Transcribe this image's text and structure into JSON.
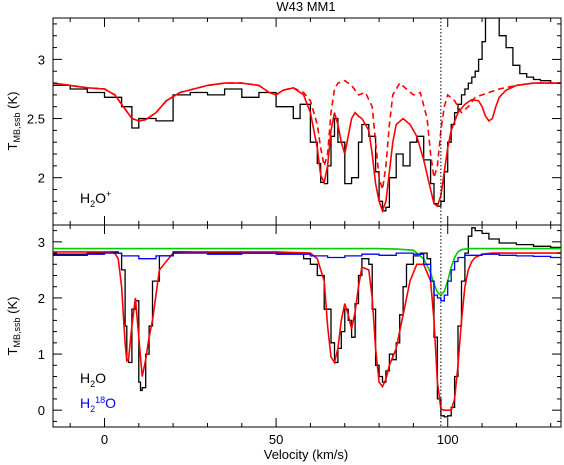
{
  "chart_data": [
    {
      "type": "line",
      "panel": "top",
      "title": "W43  MM1",
      "xlabel": "",
      "ylabel": "T_MB,ssb (K)",
      "ylabel_main": "T",
      "ylabel_sub": "MB,ssb",
      "ylabel_unit": " (K)",
      "xlim": [
        -15,
        133
      ],
      "ylim": [
        1.6,
        3.35
      ],
      "x_ticks": [
        0,
        50,
        100
      ],
      "y_ticks": [
        2,
        2.5,
        3
      ],
      "y_tick_labels": [
        "2",
        "2.5",
        "3"
      ],
      "vline_x": 98,
      "species_label": "H2O+",
      "species_main": "H",
      "species_sub": "2",
      "species_tail": "O",
      "species_sup": "+",
      "series": [
        {
          "style": "observed-step",
          "color": "#000000",
          "x": [
            -15,
            -10,
            -5,
            0,
            5,
            8,
            10,
            15,
            20,
            25,
            30,
            35,
            40,
            45,
            50,
            55,
            57,
            60,
            62,
            63,
            64,
            65,
            66,
            67,
            68,
            70,
            72,
            74,
            75,
            77,
            79,
            80,
            81,
            82,
            83,
            85,
            87,
            89,
            91,
            93,
            95,
            96,
            97,
            98,
            99,
            100,
            101,
            102,
            103,
            104,
            105,
            106,
            107,
            108,
            109,
            110,
            111,
            112,
            113,
            115,
            117,
            119,
            121,
            123,
            125,
            127,
            130,
            133
          ],
          "y": [
            2.78,
            2.75,
            2.72,
            2.68,
            2.6,
            2.42,
            2.5,
            2.48,
            2.7,
            2.72,
            2.7,
            2.75,
            2.68,
            2.72,
            2.6,
            2.5,
            2.62,
            2.3,
            2.12,
            1.96,
            1.95,
            2.1,
            2.35,
            2.5,
            2.3,
            1.95,
            2.0,
            2.3,
            2.45,
            2.35,
            2.05,
            1.8,
            1.72,
            1.75,
            2.0,
            2.2,
            2.1,
            2.3,
            2.35,
            2.15,
            1.95,
            1.78,
            1.76,
            1.8,
            2.05,
            2.3,
            2.45,
            2.55,
            2.62,
            2.7,
            2.75,
            2.8,
            2.85,
            2.9,
            3.0,
            3.15,
            3.35,
            3.35,
            3.35,
            3.2,
            3.1,
            2.95,
            2.88,
            2.85,
            2.83,
            2.82,
            2.8,
            2.8
          ]
        },
        {
          "style": "model-solid",
          "color": "#ff0000",
          "x": [
            -15,
            -10,
            -5,
            0,
            3,
            6,
            8,
            10,
            12,
            15,
            18,
            22,
            26,
            30,
            35,
            40,
            45,
            48,
            50,
            52,
            55,
            58,
            60,
            62,
            63,
            64,
            65,
            66,
            67,
            68,
            69,
            70,
            71,
            72,
            73,
            74,
            75,
            76,
            77,
            78,
            79,
            80,
            81,
            82,
            83,
            84,
            85,
            87,
            89,
            91,
            93,
            95,
            96,
            97,
            98,
            99,
            100,
            101,
            103,
            105,
            107,
            109,
            110,
            111,
            112,
            113,
            114,
            115,
            117,
            120,
            125,
            130,
            133
          ],
          "y": [
            2.8,
            2.78,
            2.76,
            2.75,
            2.7,
            2.58,
            2.5,
            2.48,
            2.49,
            2.55,
            2.65,
            2.72,
            2.75,
            2.78,
            2.8,
            2.8,
            2.78,
            2.72,
            2.7,
            2.74,
            2.76,
            2.7,
            2.55,
            2.25,
            2.02,
            1.96,
            2.1,
            2.4,
            2.55,
            2.45,
            2.3,
            2.2,
            2.35,
            2.5,
            2.55,
            2.52,
            2.5,
            2.45,
            2.4,
            2.2,
            1.95,
            1.8,
            1.72,
            1.8,
            2.05,
            2.3,
            2.45,
            2.5,
            2.45,
            2.35,
            2.15,
            1.9,
            1.78,
            1.76,
            1.85,
            2.05,
            2.25,
            2.4,
            2.55,
            2.62,
            2.66,
            2.65,
            2.6,
            2.52,
            2.48,
            2.5,
            2.6,
            2.68,
            2.74,
            2.78,
            2.8,
            2.8,
            2.8
          ]
        },
        {
          "style": "model-dashed",
          "color": "#ff0000",
          "x": [
            -15,
            -10,
            -5,
            0,
            3,
            6,
            8,
            10,
            12,
            15,
            18,
            22,
            26,
            30,
            35,
            40,
            45,
            48,
            50,
            52,
            55,
            58,
            60,
            62,
            63,
            64,
            65,
            66,
            67,
            68,
            70,
            72,
            74,
            76,
            78,
            79,
            80,
            81,
            82,
            83,
            84,
            86,
            88,
            90,
            92,
            94,
            95,
            96,
            97,
            98,
            99,
            100,
            102,
            104,
            106,
            108,
            110,
            112,
            115,
            120,
            125,
            130,
            133
          ],
          "y": [
            2.8,
            2.78,
            2.76,
            2.75,
            2.7,
            2.58,
            2.5,
            2.48,
            2.49,
            2.55,
            2.65,
            2.72,
            2.75,
            2.78,
            2.8,
            2.8,
            2.78,
            2.72,
            2.7,
            2.74,
            2.76,
            2.72,
            2.65,
            2.45,
            2.25,
            2.1,
            2.2,
            2.55,
            2.75,
            2.8,
            2.82,
            2.78,
            2.7,
            2.72,
            2.6,
            2.3,
            2.0,
            1.9,
            2.1,
            2.45,
            2.7,
            2.8,
            2.75,
            2.7,
            2.72,
            2.5,
            2.2,
            2.0,
            2.1,
            2.4,
            2.6,
            2.7,
            2.65,
            2.55,
            2.6,
            2.68,
            2.7,
            2.72,
            2.75,
            2.78,
            2.8,
            2.8,
            2.8
          ]
        }
      ]
    },
    {
      "type": "line",
      "panel": "bottom",
      "title": "",
      "xlabel": "Velocity (km/s)",
      "ylabel": "T_MB,ssb (K)",
      "ylabel_main": "T",
      "ylabel_sub": "MB,ssb",
      "ylabel_unit": " (K)",
      "xlim": [
        -15,
        133
      ],
      "ylim": [
        -0.3,
        3.3
      ],
      "x_ticks": [
        0,
        50,
        100
      ],
      "x_tick_labels": [
        "0",
        "50",
        "100"
      ],
      "y_ticks": [
        0,
        1,
        2,
        3
      ],
      "y_tick_labels": [
        "0",
        "1",
        "2",
        "3"
      ],
      "vline_x": 98,
      "species_labels": [
        {
          "text": "H2O",
          "main": "H",
          "sub": "2",
          "tail": "O",
          "color": "#000000"
        },
        {
          "text": "H218O",
          "main": "H",
          "sub": "2",
          "sup": "18",
          "tail": "O",
          "color": "#0000ff"
        }
      ],
      "series": [
        {
          "style": "observed-step",
          "color": "#000000",
          "x": [
            -15,
            -5,
            0,
            4,
            5,
            6,
            6.5,
            7,
            8,
            9,
            10,
            10.5,
            11,
            12,
            13,
            14,
            16,
            20,
            30,
            40,
            50,
            58,
            60,
            62,
            64,
            66,
            67,
            68,
            69,
            70,
            71,
            72,
            73,
            74,
            75,
            77,
            78,
            79,
            80,
            81,
            82,
            83,
            84,
            85,
            86,
            87,
            88,
            90,
            92,
            94,
            95,
            96,
            97,
            98,
            99,
            100,
            101,
            102,
            103,
            104,
            105,
            106,
            107,
            108,
            110,
            112,
            115,
            120,
            125,
            130,
            133
          ],
          "y": [
            2.78,
            2.8,
            2.82,
            2.8,
            2.5,
            1.5,
            0.9,
            0.85,
            1.8,
            1.95,
            0.5,
            0.35,
            0.4,
            1.0,
            1.5,
            2.3,
            2.75,
            2.82,
            2.8,
            2.8,
            2.8,
            2.7,
            2.6,
            2.4,
            1.8,
            1.2,
            0.85,
            1.1,
            1.4,
            1.8,
            1.6,
            1.3,
            1.9,
            2.4,
            2.7,
            2.6,
            1.8,
            0.8,
            0.6,
            0.5,
            0.7,
            1.0,
            0.9,
            1.2,
            1.7,
            2.2,
            2.6,
            2.75,
            2.8,
            2.7,
            2.3,
            1.3,
            0.2,
            -0.1,
            -0.12,
            -0.1,
            0.05,
            0.6,
            1.5,
            2.3,
            2.8,
            3.1,
            3.25,
            3.2,
            3.15,
            3.05,
            2.98,
            2.95,
            2.92,
            2.9,
            2.9
          ]
        },
        {
          "style": "model-solid",
          "color": "#ff0000",
          "x": [
            -15,
            0,
            3,
            4,
            5,
            6,
            6.5,
            7,
            8,
            9,
            10,
            11,
            12,
            13,
            14,
            16,
            20,
            30,
            40,
            50,
            60,
            62,
            64,
            65,
            66,
            67,
            68,
            69,
            70,
            71,
            72,
            73,
            74,
            75,
            77,
            78,
            79,
            80,
            81,
            82,
            83,
            84,
            85,
            87,
            89,
            91,
            93,
            95,
            96,
            97,
            98,
            99,
            100,
            101,
            102,
            103,
            104,
            105,
            106,
            107,
            108,
            110,
            113,
            118,
            125,
            133
          ],
          "y": [
            2.82,
            2.82,
            2.8,
            2.7,
            2.2,
            1.2,
            0.88,
            0.9,
            1.5,
            2.0,
            1.3,
            0.6,
            0.9,
            1.3,
            1.6,
            2.5,
            2.8,
            2.82,
            2.82,
            2.82,
            2.8,
            2.7,
            2.3,
            1.5,
            0.95,
            0.85,
            1.1,
            1.6,
            1.9,
            1.7,
            1.45,
            1.75,
            2.2,
            2.55,
            2.5,
            2.0,
            1.1,
            0.5,
            0.42,
            0.55,
            0.8,
            0.95,
            1.1,
            1.7,
            2.3,
            2.6,
            2.6,
            2.3,
            1.6,
            0.5,
            0.02,
            0.0,
            0.0,
            0.0,
            0.2,
            0.8,
            1.6,
            2.2,
            2.5,
            2.65,
            2.72,
            2.78,
            2.8,
            2.8,
            2.8,
            2.8
          ]
        },
        {
          "style": "model-green",
          "color": "#00cc00",
          "x": [
            -15,
            0,
            50,
            80,
            85,
            90,
            93,
            95,
            96,
            97,
            98,
            99,
            100,
            101,
            102,
            103,
            104,
            106,
            110,
            120,
            133
          ],
          "y": [
            2.88,
            2.88,
            2.88,
            2.88,
            2.87,
            2.85,
            2.7,
            2.45,
            2.25,
            2.1,
            2.05,
            2.12,
            2.3,
            2.55,
            2.72,
            2.82,
            2.86,
            2.88,
            2.88,
            2.88,
            2.88
          ]
        },
        {
          "style": "observed-blue",
          "color": "#0000ff",
          "x": [
            -15,
            -5,
            0,
            5,
            10,
            15,
            20,
            30,
            40,
            50,
            60,
            65,
            70,
            75,
            80,
            85,
            90,
            93,
            95,
            96,
            97,
            98,
            99,
            100,
            101,
            102,
            103,
            105,
            110,
            115,
            120,
            125,
            130,
            133
          ],
          "y": [
            2.76,
            2.78,
            2.8,
            2.75,
            2.7,
            2.75,
            2.8,
            2.78,
            2.8,
            2.78,
            2.75,
            2.72,
            2.75,
            2.78,
            2.76,
            2.8,
            2.78,
            2.6,
            2.3,
            2.05,
            2.0,
            1.95,
            2.05,
            2.3,
            2.5,
            2.65,
            2.72,
            2.76,
            2.78,
            2.76,
            2.75,
            2.74,
            2.72,
            2.72
          ]
        }
      ]
    }
  ]
}
